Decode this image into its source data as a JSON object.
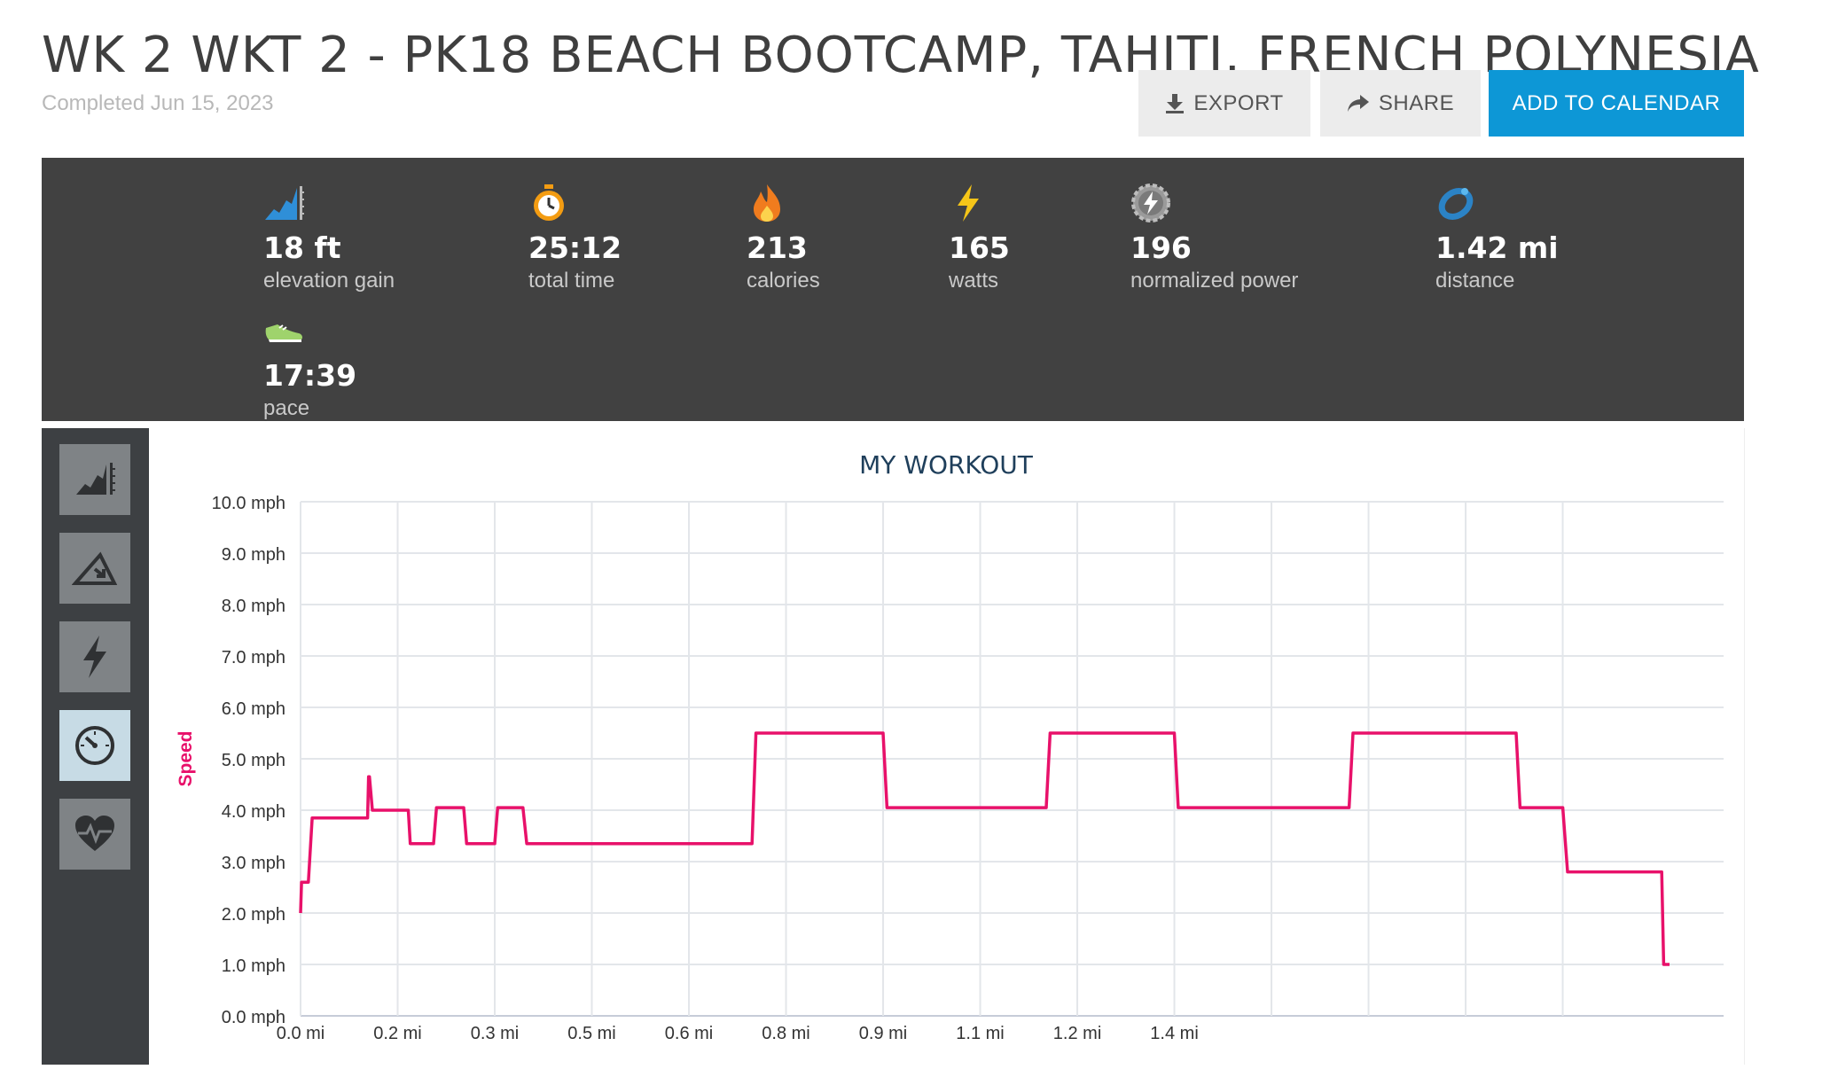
{
  "header": {
    "title": "WK 2 WKT 2 - PK18 BEACH BOOTCAMP, TAHITI, FRENCH POLYNESIA",
    "completed": "Completed Jun 15, 2023"
  },
  "actions": {
    "export_label": "EXPORT",
    "share_label": "SHARE",
    "calendar_label": "ADD TO CALENDAR"
  },
  "stats": [
    {
      "icon": "elevation-icon",
      "value": "18 ft",
      "label": "elevation gain"
    },
    {
      "icon": "stopwatch-icon",
      "value": "25:12",
      "label": "total time"
    },
    {
      "icon": "flame-icon",
      "value": "213",
      "label": "calories"
    },
    {
      "icon": "lightning-icon",
      "value": "165",
      "label": "watts"
    },
    {
      "icon": "gear-lightning-icon",
      "value": "196",
      "label": "normalized power"
    },
    {
      "icon": "distance-ring-icon",
      "value": "1.42 mi",
      "label": "distance"
    },
    {
      "icon": "shoe-icon",
      "value": "17:39",
      "label": "pace"
    }
  ],
  "sidebar": {
    "items": [
      {
        "name": "elevation-metric",
        "icon": "elevation-icon",
        "active": false
      },
      {
        "name": "incline-metric",
        "icon": "incline-icon",
        "active": false
      },
      {
        "name": "power-metric",
        "icon": "lightning-icon",
        "active": false
      },
      {
        "name": "speed-metric",
        "icon": "speedometer-icon",
        "active": true
      },
      {
        "name": "heart-rate-metric",
        "icon": "heart-rate-icon",
        "active": false
      }
    ]
  },
  "colors": {
    "accent": "#0d97d6",
    "series": "#e8116a",
    "stats_bg": "#414141",
    "sidebar_bg": "#3d4043"
  },
  "chart_data": {
    "type": "line",
    "title": "MY WORKOUT",
    "ylabel": "Speed",
    "xlabel": "",
    "xlim": [
      0,
      1.42
    ],
    "ylim": [
      0,
      10
    ],
    "yticks": [
      0,
      1,
      2,
      3,
      4,
      5,
      6,
      7,
      8,
      9,
      10
    ],
    "ytick_labels": [
      "0.0 mph",
      "1.0 mph",
      "2.0 mph",
      "3.0 mph",
      "4.0 mph",
      "5.0 mph",
      "6.0 mph",
      "7.0 mph",
      "8.0 mph",
      "9.0 mph",
      "10.0 mph"
    ],
    "xticks": [
      0,
      0.1,
      0.2,
      0.3,
      0.4,
      0.5,
      0.6,
      0.7,
      0.8,
      0.9,
      1.0,
      1.1,
      1.2,
      1.3
    ],
    "xtick_labels": [
      "0.0 mi",
      "0.2 mi",
      "0.3 mi",
      "0.5 mi",
      "0.6 mi",
      "0.8 mi",
      "0.9 mi",
      "1.1 mi",
      "1.2 mi",
      "1.4 mi"
    ],
    "xtick_label_values": [
      0,
      0.1,
      0.2,
      0.3,
      0.4,
      0.5,
      0.6,
      0.7,
      0.8,
      0.9
    ],
    "grid": true,
    "series": [
      {
        "color": "#e8116a",
        "x": [
          0,
          0.001,
          0.008,
          0.012,
          0.069,
          0.07,
          0.071,
          0.074,
          0.111,
          0.113,
          0.137,
          0.14,
          0.168,
          0.171,
          0.2,
          0.203,
          0.229,
          0.233,
          0.465,
          0.469,
          0.6,
          0.604,
          0.768,
          0.772,
          0.9,
          0.904,
          1.08,
          1.084,
          1.252,
          1.256,
          1.3,
          1.305,
          1.402,
          1.404,
          1.41
        ],
        "y": [
          2.0,
          2.6,
          2.6,
          3.85,
          3.85,
          4.65,
          4.65,
          4.0,
          4.0,
          3.35,
          3.35,
          4.05,
          4.05,
          3.35,
          3.35,
          4.05,
          4.05,
          3.35,
          3.35,
          5.5,
          5.5,
          4.05,
          4.05,
          5.5,
          5.5,
          4.05,
          4.05,
          5.5,
          5.5,
          4.05,
          4.05,
          2.8,
          2.8,
          1.0,
          1.0
        ]
      }
    ]
  }
}
